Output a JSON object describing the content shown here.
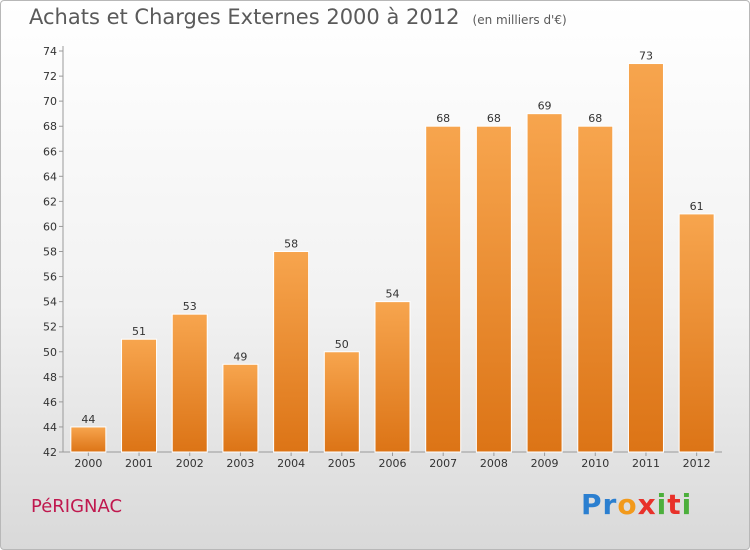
{
  "header": {
    "title": "Achats et Charges Externes 2000 à 2012",
    "unit": "(en milliers d'€)"
  },
  "footer": {
    "commune": "PéRIGNAC",
    "brand": "Proxiti"
  },
  "colors": {
    "bar_light": "#f7a54e",
    "bar_dark": "#dc7416",
    "commune": "#c0184e",
    "axis_text": "#333333"
  },
  "chart_data": {
    "type": "bar",
    "categories": [
      "2000",
      "2001",
      "2002",
      "2003",
      "2004",
      "2005",
      "2006",
      "2007",
      "2008",
      "2009",
      "2010",
      "2011",
      "2012"
    ],
    "values": [
      44,
      51,
      53,
      49,
      58,
      50,
      54,
      68,
      68,
      69,
      68,
      73,
      61
    ],
    "ylim": [
      42,
      74
    ],
    "yticks": [
      42,
      44,
      46,
      48,
      50,
      52,
      54,
      56,
      58,
      60,
      62,
      64,
      66,
      68,
      70,
      72,
      74
    ],
    "grid": false,
    "data_labels": true
  }
}
